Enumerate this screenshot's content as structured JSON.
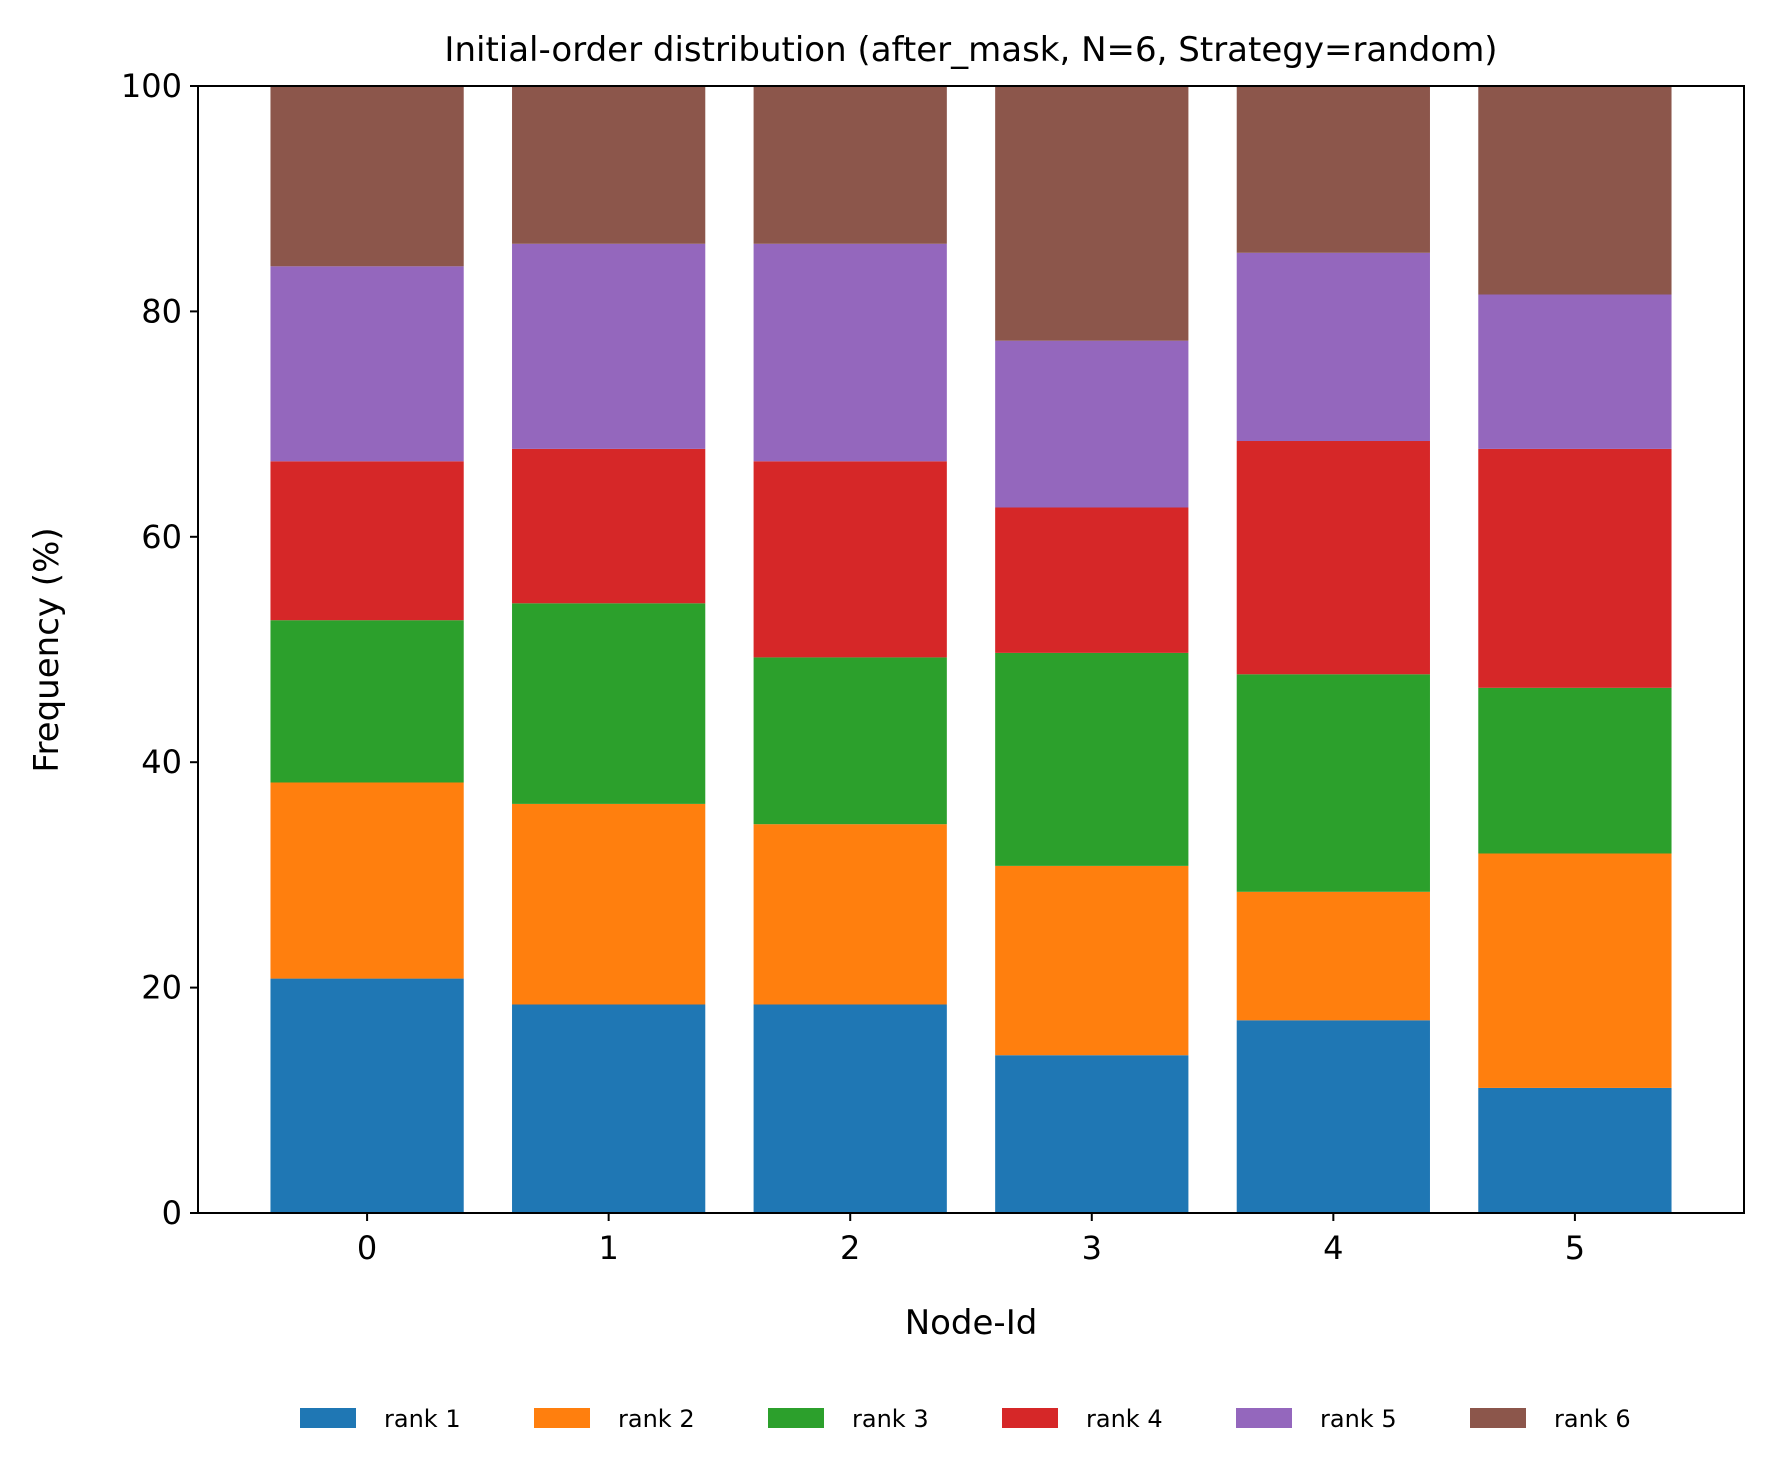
{
  "chart_data": {
    "type": "bar",
    "stacked": true,
    "title": "Initial-order distribution (after_mask, N=6, Strategy=random)",
    "xlabel": "Node-Id",
    "ylabel": "Frequency (%)",
    "categories": [
      "0",
      "1",
      "2",
      "3",
      "4",
      "5"
    ],
    "ylim": [
      0,
      100
    ],
    "yticks": [
      0,
      20,
      40,
      60,
      80,
      100
    ],
    "grid": false,
    "legend_position": "bottom-center",
    "series": [
      {
        "name": "rank 1",
        "color": "#1f77b4",
        "values": [
          20.8,
          18.5,
          18.5,
          14.0,
          17.1,
          11.1
        ]
      },
      {
        "name": "rank 2",
        "color": "#ff7f0e",
        "values": [
          17.4,
          17.8,
          16.0,
          16.8,
          11.4,
          20.8
        ]
      },
      {
        "name": "rank 3",
        "color": "#2ca02c",
        "values": [
          14.4,
          17.8,
          14.8,
          18.9,
          19.3,
          14.7
        ]
      },
      {
        "name": "rank 4",
        "color": "#d62728",
        "values": [
          14.1,
          13.7,
          17.4,
          12.9,
          20.7,
          21.2
        ]
      },
      {
        "name": "rank 5",
        "color": "#9467bd",
        "values": [
          17.3,
          18.2,
          19.3,
          14.8,
          16.7,
          13.7
        ]
      },
      {
        "name": "rank 6",
        "color": "#8c564b",
        "values": [
          16.0,
          14.0,
          14.0,
          22.6,
          14.8,
          18.5
        ]
      }
    ]
  }
}
